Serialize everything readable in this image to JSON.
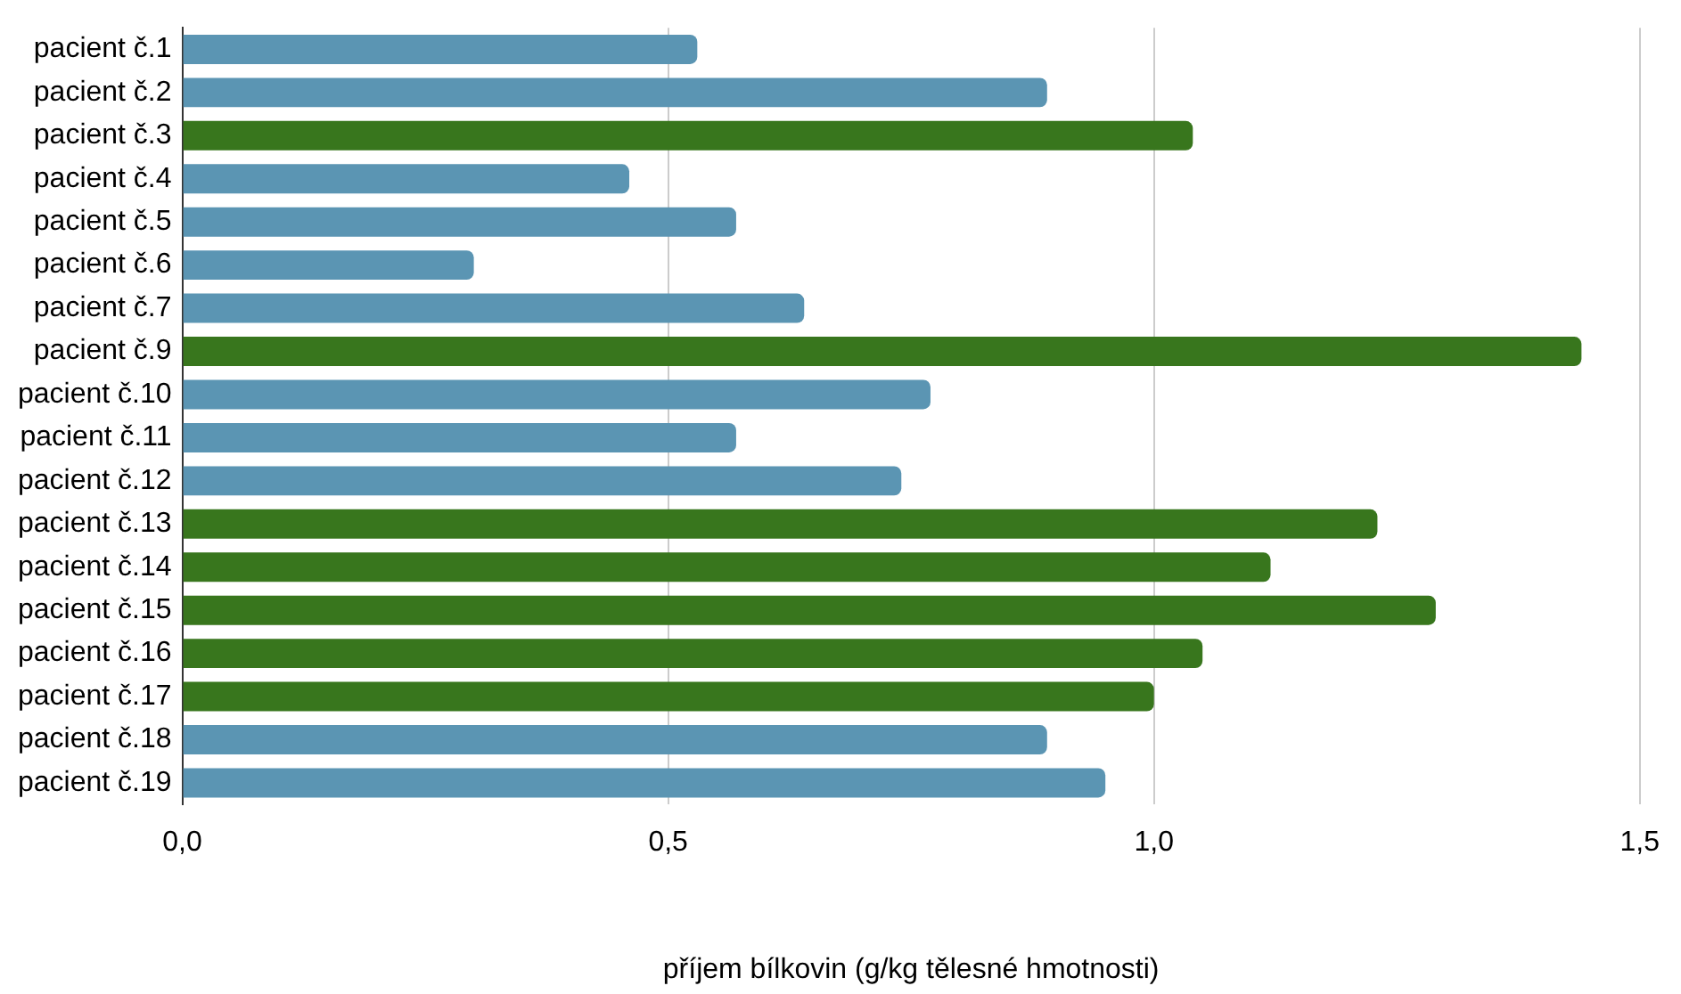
{
  "chart_data": {
    "type": "bar",
    "orientation": "horizontal",
    "xlabel": "příjem bílkovin (g/kg tělesné hmotnosti)",
    "categories": [
      "pacient č.1",
      "pacient č.2",
      "pacient č.3",
      "pacient č.4",
      "pacient č.5",
      "pacient č.6",
      "pacient č.7",
      "pacient č.9",
      "pacient č.10",
      "pacient č.11",
      "pacient č.12",
      "pacient č.13",
      "pacient č.14",
      "pacient č.15",
      "pacient č.16",
      "pacient č.17",
      "pacient č.18",
      "pacient č.19"
    ],
    "values": [
      0.53,
      0.89,
      1.04,
      0.46,
      0.57,
      0.3,
      0.64,
      1.44,
      0.77,
      0.57,
      0.74,
      1.23,
      1.12,
      1.29,
      1.05,
      1.0,
      0.89,
      0.95
    ],
    "colors": [
      "#5b95b3",
      "#5b95b3",
      "#38761d",
      "#5b95b3",
      "#5b95b3",
      "#5b95b3",
      "#5b95b3",
      "#38761d",
      "#5b95b3",
      "#5b95b3",
      "#5b95b3",
      "#38761d",
      "#38761d",
      "#38761d",
      "#38761d",
      "#38761d",
      "#5b95b3",
      "#5b95b3"
    ],
    "xlim": [
      0,
      1.5
    ],
    "xticks": [
      {
        "value": 0,
        "label": "0,0"
      },
      {
        "value": 0.5,
        "label": "0,5"
      },
      {
        "value": 1,
        "label": "1,0"
      },
      {
        "value": 1.5,
        "label": "1,5"
      }
    ],
    "grid": "x",
    "legend": false
  }
}
